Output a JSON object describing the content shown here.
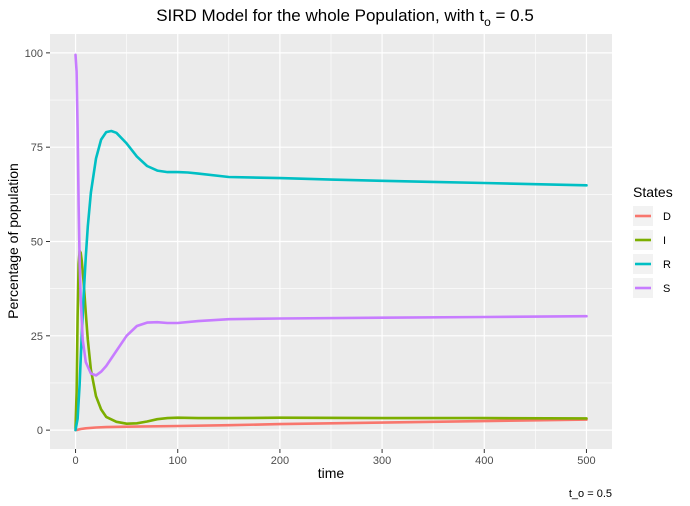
{
  "chart_data": {
    "type": "line",
    "title": {
      "main": "SIRD Model for the whole Population, with t",
      "subscript": "o",
      "suffix": " = 0.5"
    },
    "xlabel": "time",
    "ylabel": "Percentage of population",
    "caption": "t_o = 0.5",
    "xlim": [
      -25,
      525
    ],
    "ylim": [
      -5,
      105
    ],
    "x_ticks": [
      0,
      100,
      200,
      300,
      400,
      500
    ],
    "x_tick_labels": [
      "0",
      "100",
      "200",
      "300",
      "400",
      "500"
    ],
    "y_ticks": [
      0,
      25,
      50,
      75,
      100
    ],
    "y_tick_labels": [
      "0",
      "25",
      "50",
      "75",
      "100"
    ],
    "grid": true,
    "legend": {
      "title": "States",
      "position": "right"
    },
    "series": [
      {
        "name": "D",
        "color": "#F8766D",
        "points": [
          [
            0,
            0
          ],
          [
            2,
            0.1
          ],
          [
            5,
            0.3
          ],
          [
            10,
            0.5
          ],
          [
            20,
            0.7
          ],
          [
            30,
            0.8
          ],
          [
            50,
            0.9
          ],
          [
            100,
            1.1
          ],
          [
            150,
            1.3
          ],
          [
            200,
            1.6
          ],
          [
            250,
            1.8
          ],
          [
            300,
            2.0
          ],
          [
            350,
            2.2
          ],
          [
            400,
            2.4
          ],
          [
            450,
            2.6
          ],
          [
            500,
            2.8
          ]
        ]
      },
      {
        "name": "I",
        "color": "#7CAE00",
        "points": [
          [
            0,
            0.5
          ],
          [
            1,
            10
          ],
          [
            2,
            30
          ],
          [
            3,
            44
          ],
          [
            4,
            47.5
          ],
          [
            5,
            47
          ],
          [
            6,
            45
          ],
          [
            8,
            39
          ],
          [
            10,
            31
          ],
          [
            12,
            24
          ],
          [
            15,
            16
          ],
          [
            20,
            9
          ],
          [
            25,
            5.5
          ],
          [
            30,
            3.5
          ],
          [
            40,
            2.2
          ],
          [
            50,
            1.7
          ],
          [
            60,
            1.8
          ],
          [
            70,
            2.3
          ],
          [
            80,
            2.9
          ],
          [
            90,
            3.2
          ],
          [
            100,
            3.3
          ],
          [
            120,
            3.2
          ],
          [
            150,
            3.2
          ],
          [
            200,
            3.3
          ],
          [
            300,
            3.2
          ],
          [
            400,
            3.2
          ],
          [
            500,
            3.1
          ]
        ]
      },
      {
        "name": "R",
        "color": "#00BFC4",
        "points": [
          [
            0,
            0
          ],
          [
            2,
            3
          ],
          [
            4,
            12
          ],
          [
            6,
            25
          ],
          [
            8,
            36
          ],
          [
            10,
            46
          ],
          [
            12,
            54
          ],
          [
            15,
            63
          ],
          [
            20,
            72
          ],
          [
            25,
            77
          ],
          [
            30,
            79
          ],
          [
            35,
            79.3
          ],
          [
            40,
            78.8
          ],
          [
            50,
            76
          ],
          [
            60,
            72.5
          ],
          [
            70,
            70
          ],
          [
            80,
            68.8
          ],
          [
            90,
            68.4
          ],
          [
            100,
            68.4
          ],
          [
            110,
            68.3
          ],
          [
            120,
            68
          ],
          [
            150,
            67.1
          ],
          [
            200,
            66.8
          ],
          [
            250,
            66.4
          ],
          [
            300,
            66.1
          ],
          [
            350,
            65.8
          ],
          [
            400,
            65.5
          ],
          [
            450,
            65.2
          ],
          [
            500,
            64.9
          ]
        ]
      },
      {
        "name": "S",
        "color": "#C77CFF",
        "points": [
          [
            0,
            99.5
          ],
          [
            1,
            95
          ],
          [
            2,
            80
          ],
          [
            3,
            60
          ],
          [
            4,
            45
          ],
          [
            5,
            35
          ],
          [
            7,
            24
          ],
          [
            10,
            18
          ],
          [
            15,
            15
          ],
          [
            20,
            14.5
          ],
          [
            25,
            15.5
          ],
          [
            30,
            17
          ],
          [
            40,
            21
          ],
          [
            50,
            25
          ],
          [
            60,
            27.6
          ],
          [
            70,
            28.5
          ],
          [
            80,
            28.6
          ],
          [
            90,
            28.4
          ],
          [
            100,
            28.4
          ],
          [
            120,
            28.9
          ],
          [
            150,
            29.4
          ],
          [
            200,
            29.6
          ],
          [
            300,
            29.8
          ],
          [
            400,
            30.0
          ],
          [
            500,
            30.2
          ]
        ]
      }
    ]
  }
}
